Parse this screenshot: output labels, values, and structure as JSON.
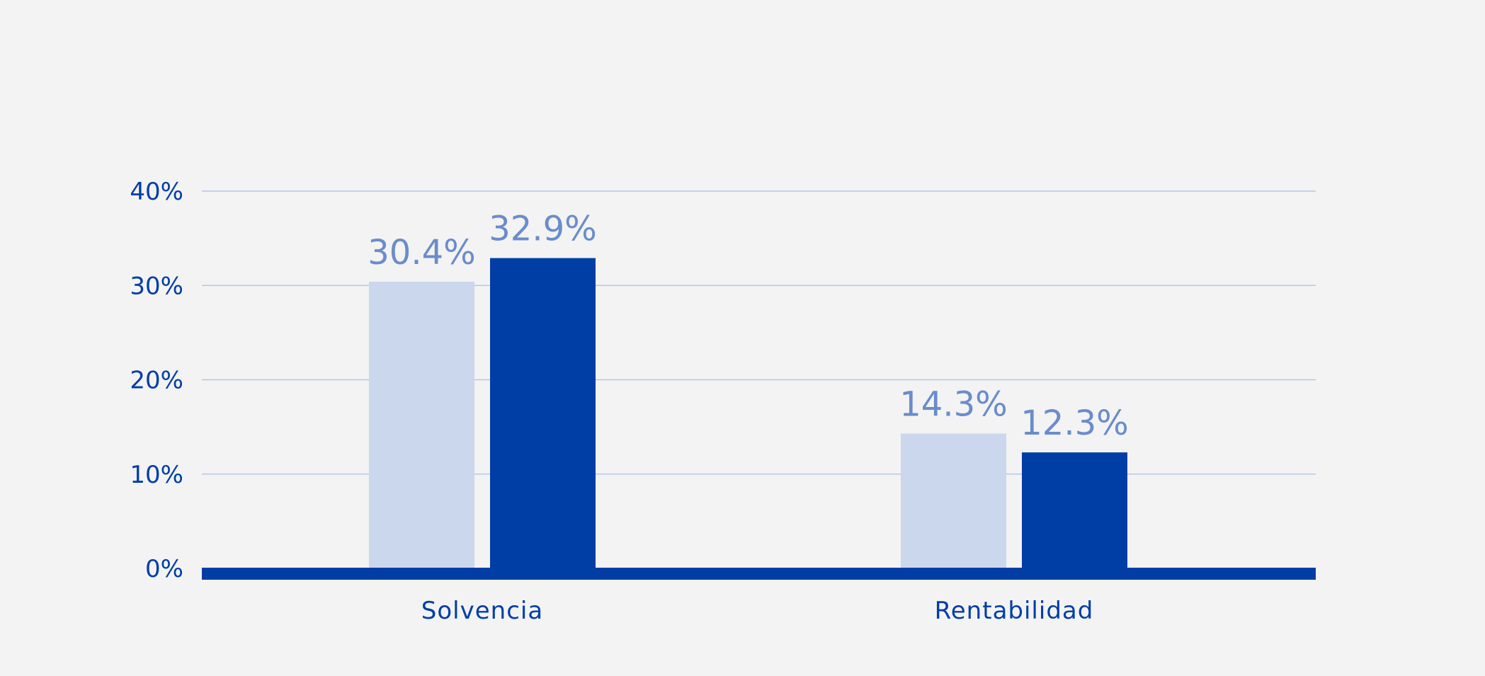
{
  "chart_data": {
    "type": "bar",
    "categories": [
      "Solvencia",
      "Rentabilidad"
    ],
    "series": [
      {
        "values": [
          30.4,
          14.3
        ]
      },
      {
        "values": [
          32.9,
          12.3
        ]
      }
    ],
    "data_labels": [
      [
        "30.4%",
        "14.3%"
      ],
      [
        "32.9%",
        "12.3%"
      ]
    ],
    "y_ticks": [
      0,
      10,
      20,
      30,
      40
    ],
    "y_tick_labels": [
      "0%",
      "10%",
      "20%",
      "30%",
      "40%"
    ],
    "ylim": [
      0,
      40
    ],
    "grid": true,
    "legend": "none",
    "colors": {
      "series": [
        "#cbd7ed",
        "#003ea6"
      ],
      "baseline": "#003ea6",
      "grid": "#a9bfe3",
      "tick_text": "#003ea6",
      "data_label": "#6a8ccb",
      "background": "#f3f3f3"
    }
  }
}
